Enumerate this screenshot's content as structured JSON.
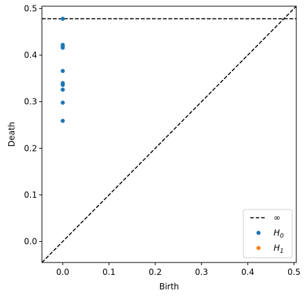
{
  "chart_data": {
    "type": "scatter",
    "title": "",
    "xlabel": "Birth",
    "ylabel": "Death",
    "xlim": [
      -0.045,
      0.505
    ],
    "ylim": [
      -0.045,
      0.505
    ],
    "x_ticks": [
      0.0,
      0.1,
      0.2,
      0.3,
      0.4,
      0.5
    ],
    "x_tick_labels": [
      "0.0",
      "0.1",
      "0.2",
      "0.3",
      "0.4",
      "0.5"
    ],
    "y_ticks": [
      0.0,
      0.1,
      0.2,
      0.3,
      0.4,
      0.5
    ],
    "y_tick_labels": [
      "0.0",
      "0.1",
      "0.2",
      "0.3",
      "0.4",
      "0.5"
    ],
    "grid": false,
    "infinity_line": {
      "label": "∞",
      "y": 0.478,
      "color": "#000000",
      "style": "dashed"
    },
    "diagonal": {
      "color": "#000000",
      "style": "dashed"
    },
    "legend_placement": "lower-right",
    "series": [
      {
        "name": "H0",
        "color": "#1f77b4",
        "points": [
          {
            "x": 0.0,
            "y": 0.478
          },
          {
            "x": 0.0,
            "y": 0.422
          },
          {
            "x": 0.0,
            "y": 0.419
          },
          {
            "x": 0.0,
            "y": 0.416
          },
          {
            "x": 0.0,
            "y": 0.366
          },
          {
            "x": 0.0,
            "y": 0.34
          },
          {
            "x": 0.0,
            "y": 0.336
          },
          {
            "x": 0.0,
            "y": 0.326
          },
          {
            "x": 0.0,
            "y": 0.298
          },
          {
            "x": 0.0,
            "y": 0.259
          }
        ]
      },
      {
        "name": "H1",
        "color": "#ff7f0e",
        "points": []
      }
    ]
  }
}
